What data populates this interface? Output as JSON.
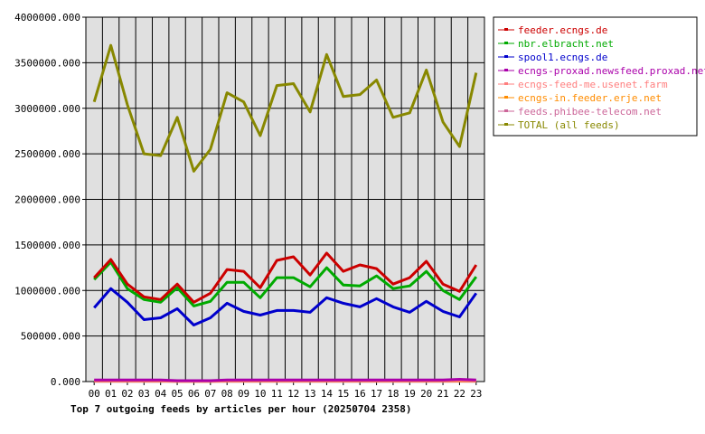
{
  "chart_data": {
    "type": "line",
    "title": "Top 7 outgoing feeds by articles per hour (20250704 2358)",
    "xlabel": "",
    "ylabel": "",
    "ylim": [
      0,
      4000000
    ],
    "yticks": [
      "0.000",
      "500000.000",
      "1000000.000",
      "1500000.000",
      "2000000.000",
      "2500000.000",
      "3000000.000",
      "3500000.000",
      "4000000.000"
    ],
    "categories": [
      "00",
      "01",
      "02",
      "03",
      "04",
      "05",
      "06",
      "07",
      "08",
      "09",
      "10",
      "11",
      "12",
      "13",
      "14",
      "15",
      "16",
      "17",
      "18",
      "19",
      "20",
      "21",
      "22",
      "23"
    ],
    "grid": true,
    "legend_position": "right",
    "series": [
      {
        "name": "feeder.ecngs.de",
        "color": "#cc0000",
        "values": [
          1140000,
          1340000,
          1070000,
          930000,
          900000,
          1070000,
          870000,
          970000,
          1230000,
          1210000,
          1030000,
          1330000,
          1370000,
          1170000,
          1410000,
          1210000,
          1280000,
          1240000,
          1070000,
          1140000,
          1320000,
          1070000,
          990000,
          1280000
        ]
      },
      {
        "name": "nbr.elbracht.net",
        "color": "#00aa00",
        "values": [
          1120000,
          1310000,
          1020000,
          900000,
          870000,
          1030000,
          830000,
          880000,
          1090000,
          1090000,
          920000,
          1140000,
          1140000,
          1040000,
          1250000,
          1060000,
          1050000,
          1160000,
          1020000,
          1050000,
          1210000,
          1000000,
          900000,
          1150000
        ]
      },
      {
        "name": "spool1.ecngs.de",
        "color": "#0000cc",
        "values": [
          810000,
          1020000,
          870000,
          680000,
          700000,
          800000,
          620000,
          700000,
          860000,
          770000,
          730000,
          780000,
          780000,
          760000,
          920000,
          860000,
          820000,
          910000,
          820000,
          760000,
          880000,
          770000,
          710000,
          970000
        ]
      },
      {
        "name": "ecngs-proxad.newsfeed.proxad.net",
        "color": "#aa00aa",
        "values": [
          18000,
          18000,
          18000,
          18000,
          18000,
          10000,
          10000,
          10000,
          18000,
          18000,
          18000,
          18000,
          18000,
          18000,
          18000,
          18000,
          18000,
          18000,
          18000,
          18000,
          18000,
          18000,
          25000,
          18000
        ]
      },
      {
        "name": "ecngs-feed-me.usenet.farm",
        "color": "#ff7f7f",
        "values": [
          10000,
          10000,
          10000,
          10000,
          10000,
          5000,
          5000,
          5000,
          10000,
          10000,
          10000,
          10000,
          10000,
          10000,
          10000,
          10000,
          10000,
          10000,
          10000,
          10000,
          10000,
          10000,
          14000,
          10000
        ]
      },
      {
        "name": "ecngs-in.feeder.erje.net",
        "color": "#ff8c00",
        "values": [
          6000,
          6000,
          6000,
          6000,
          6000,
          3000,
          3000,
          3000,
          6000,
          6000,
          6000,
          6000,
          6000,
          6000,
          6000,
          6000,
          6000,
          6000,
          6000,
          6000,
          6000,
          6000,
          8000,
          6000
        ]
      },
      {
        "name": "feeds.phibee-telecom.net",
        "color": "#cc6699",
        "values": [
          3000,
          3000,
          3000,
          3000,
          3000,
          2000,
          2000,
          2000,
          3000,
          3000,
          3000,
          3000,
          3000,
          3000,
          3000,
          3000,
          3000,
          3000,
          3000,
          3000,
          3000,
          3000,
          4000,
          3000
        ]
      },
      {
        "name": "TOTAL (all feeds)",
        "color": "#888800",
        "values": [
          3070000,
          3690000,
          3040000,
          2500000,
          2480000,
          2900000,
          2310000,
          2550000,
          3170000,
          3070000,
          2700000,
          3250000,
          3270000,
          2960000,
          3590000,
          3130000,
          3150000,
          3310000,
          2900000,
          2950000,
          3420000,
          2850000,
          2580000,
          3390000
        ]
      }
    ]
  }
}
